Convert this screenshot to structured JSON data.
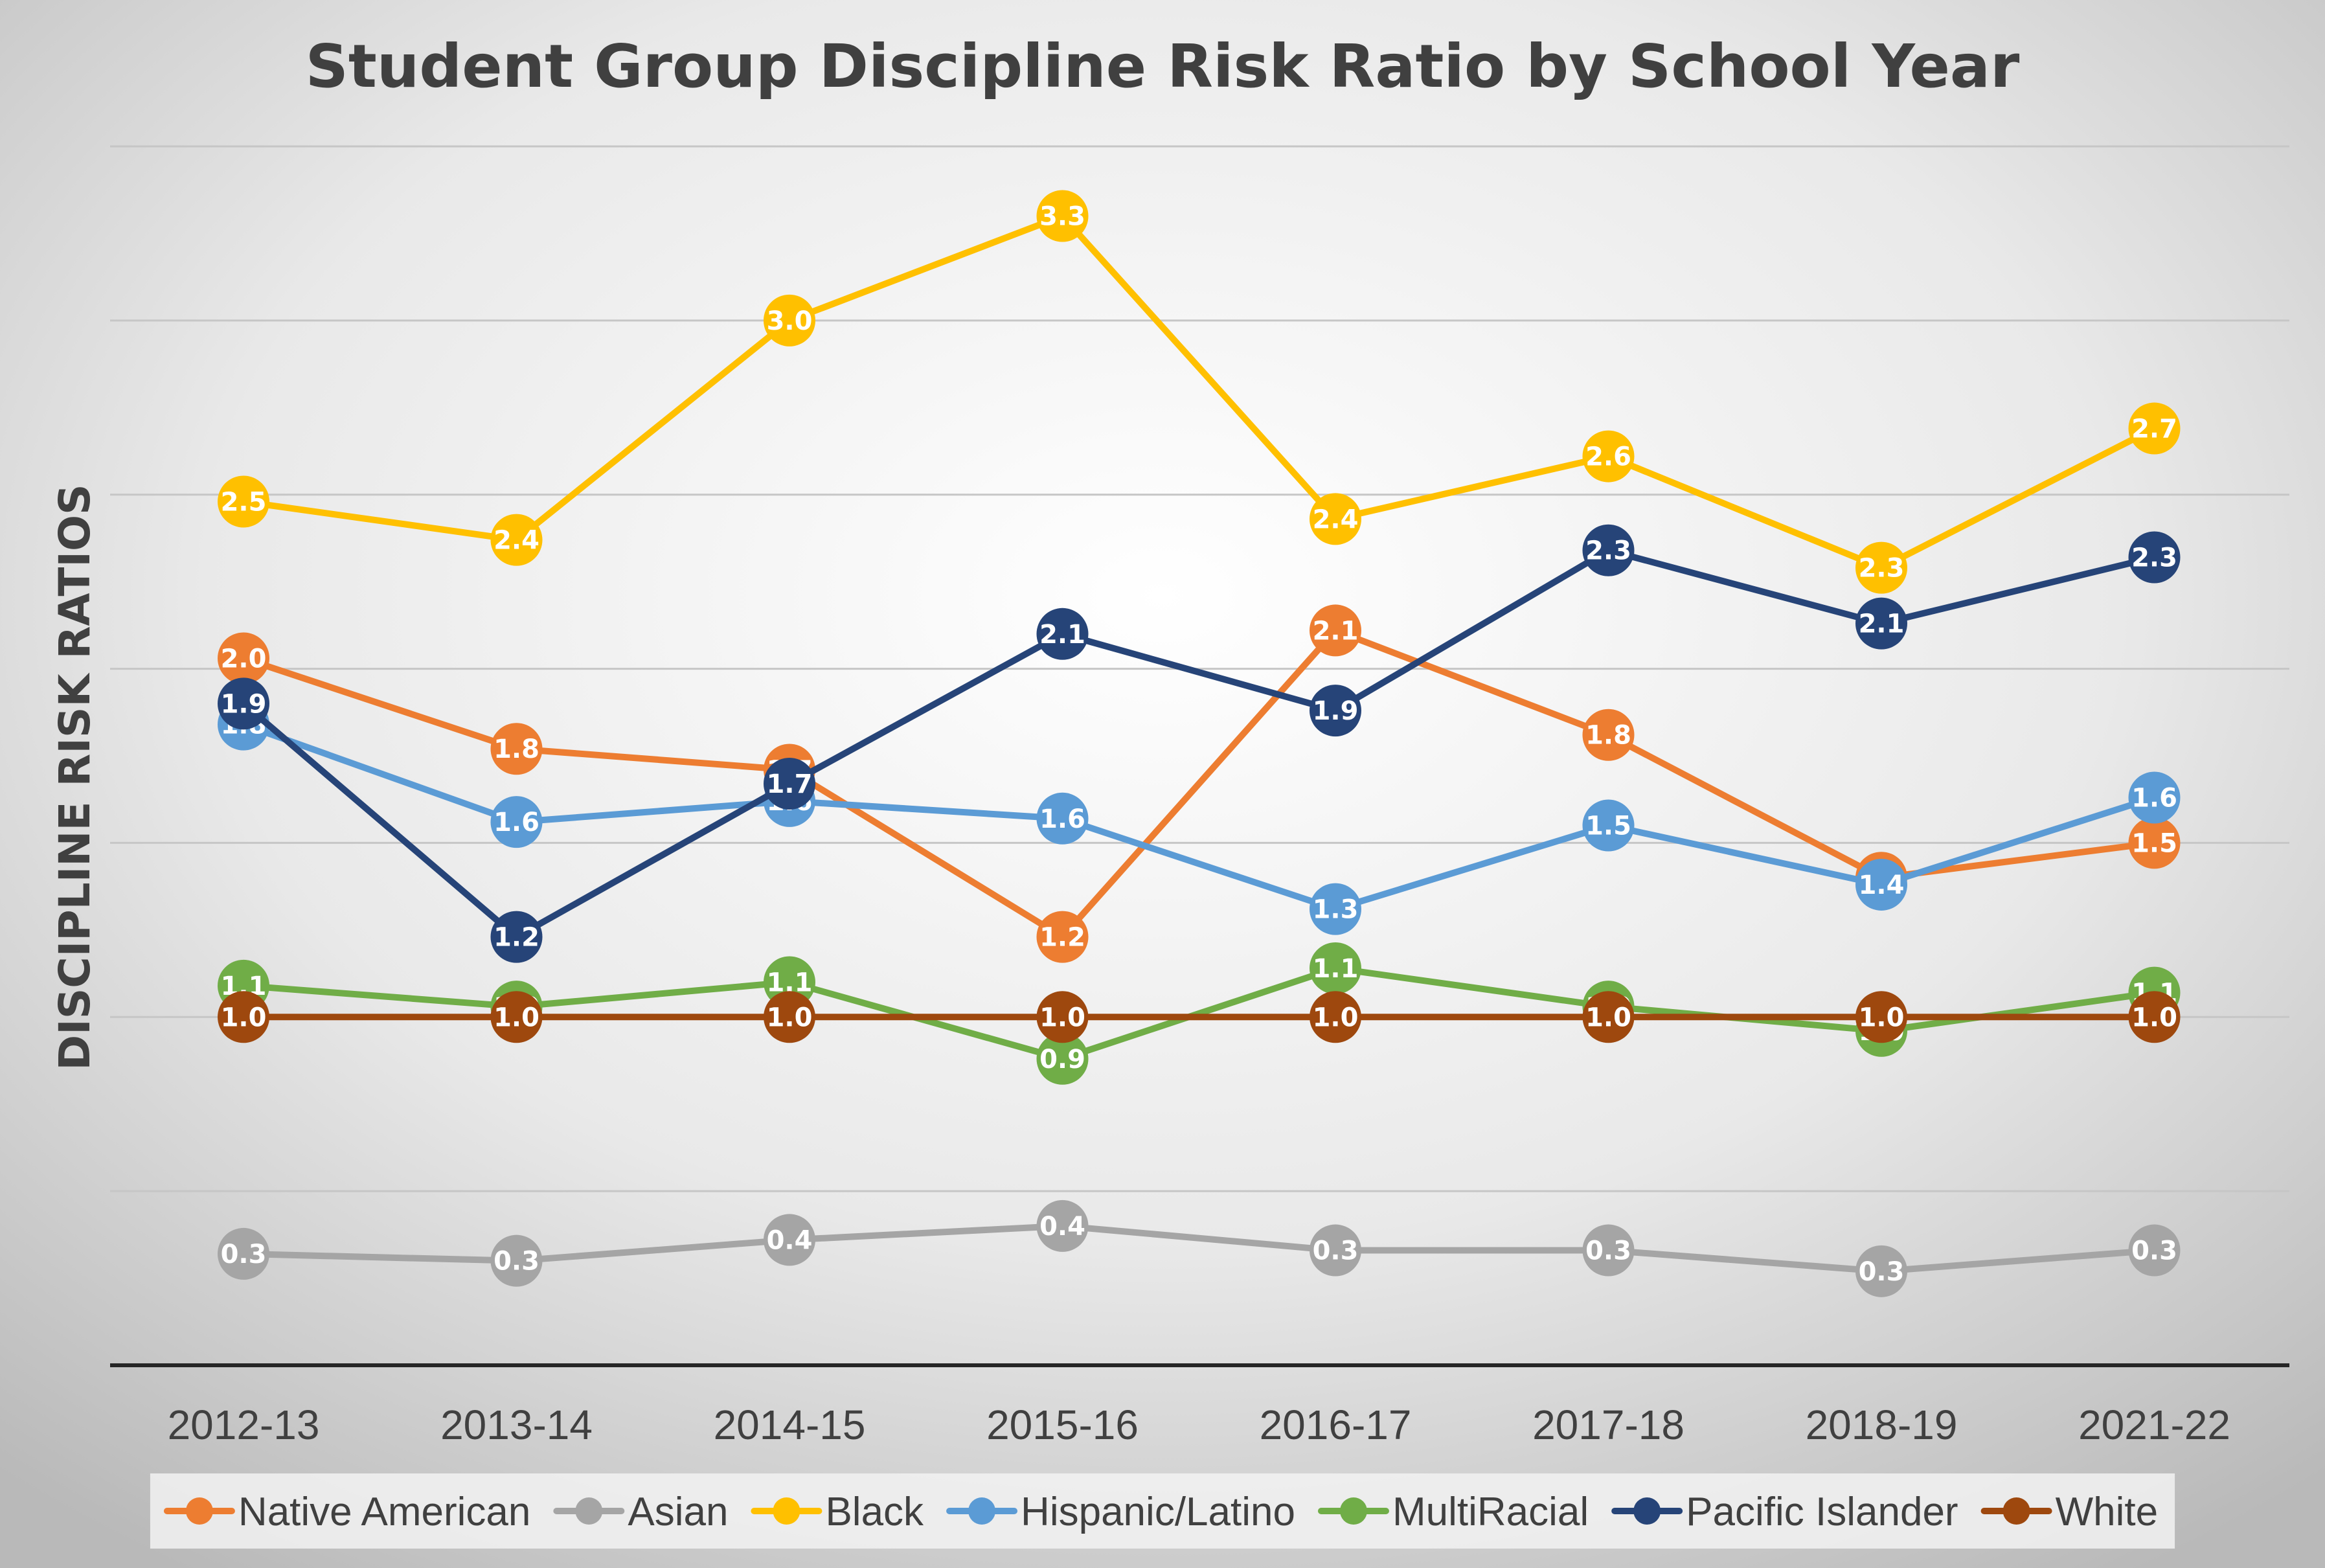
{
  "chart_data": {
    "type": "line",
    "title": "Student Group Discipline Risk Ratio by School Year",
    "ylabel": "DISCIPLINE RISK RATIOS",
    "xlabel": "",
    "categories": [
      "2012-13",
      "2013-14",
      "2014-15",
      "2015-16",
      "2016-17",
      "2017-18",
      "2018-19",
      "2021-22"
    ],
    "ylim": [
      0,
      3.5
    ],
    "gridlines": [
      0.5,
      1.0,
      1.5,
      2.0,
      2.5,
      3.0,
      3.5
    ],
    "grid": true,
    "legend_position": "bottom",
    "series": [
      {
        "name": "Native American",
        "color": "#ED7D31",
        "values": [
          2.03,
          1.77,
          1.71,
          1.23,
          2.11,
          1.81,
          1.4,
          1.5
        ],
        "labels": [
          "2.0",
          "1.8",
          "1.7",
          "1.2",
          "2.1",
          "1.8",
          "1.4",
          "1.5"
        ]
      },
      {
        "name": "Asian",
        "color": "#A5A5A5",
        "values": [
          0.32,
          0.3,
          0.36,
          0.4,
          0.33,
          0.33,
          0.27,
          0.33
        ],
        "labels": [
          "0.3",
          "0.3",
          "0.4",
          "0.4",
          "0.3",
          "0.3",
          "0.3",
          "0.3"
        ]
      },
      {
        "name": "Black",
        "color": "#FFC000",
        "values": [
          2.48,
          2.37,
          3.0,
          3.3,
          2.43,
          2.61,
          2.29,
          2.69
        ],
        "labels": [
          "2.5",
          "2.4",
          "3.0",
          "3.3",
          "2.4",
          "2.6",
          "2.3",
          "2.7"
        ]
      },
      {
        "name": "Hispanic/Latino",
        "color": "#5B9BD5",
        "values": [
          1.84,
          1.56,
          1.62,
          1.57,
          1.31,
          1.55,
          1.38,
          1.63
        ],
        "labels": [
          "1.8",
          "1.6",
          "1.6",
          "1.6",
          "1.3",
          "1.5",
          "1.4",
          "1.6"
        ]
      },
      {
        "name": "MultiRacial",
        "color": "#70AD47",
        "values": [
          1.09,
          1.03,
          1.1,
          0.88,
          1.14,
          1.03,
          0.96,
          1.07
        ],
        "labels": [
          "1.1",
          "1.0",
          "1.1",
          "0.9",
          "1.1",
          "1.0",
          "1.0",
          "1.1"
        ]
      },
      {
        "name": "Pacific Islander",
        "color": "#264478",
        "values": [
          1.9,
          1.23,
          1.67,
          2.1,
          1.88,
          2.34,
          2.13,
          2.32
        ],
        "labels": [
          "1.9",
          "1.2",
          "1.7",
          "2.1",
          "1.9",
          "2.3",
          "2.1",
          "2.3"
        ]
      },
      {
        "name": "White",
        "color": "#9E480E",
        "values": [
          1.0,
          1.0,
          1.0,
          1.0,
          1.0,
          1.0,
          1.0,
          1.0
        ],
        "labels": [
          "1.0",
          "1.0",
          "1.0",
          "1.0",
          "1.0",
          "1.0",
          "1.0",
          "1.0"
        ]
      }
    ]
  }
}
